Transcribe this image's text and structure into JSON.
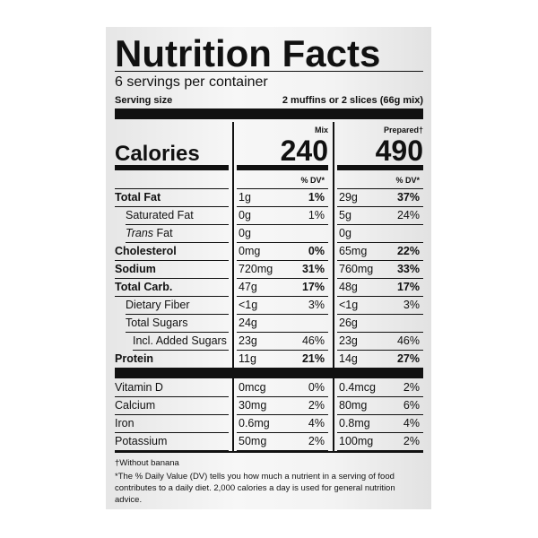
{
  "title": "Nutrition Facts",
  "servings": "6 servings per container",
  "serving_size": {
    "label": "Serving size",
    "value": "2 muffins or 2 slices (66g mix)"
  },
  "calories": {
    "label": "Calories",
    "columns": [
      {
        "header": "Mix",
        "value": "240"
      },
      {
        "header": "Prepared†",
        "value": "490"
      }
    ]
  },
  "dv_header": [
    "% DV*",
    "% DV*"
  ],
  "nutrients": [
    {
      "name": "Total Fat",
      "bold": true,
      "indent": 0,
      "mix": [
        "1g",
        "1%"
      ],
      "prep": [
        "29g",
        "37%"
      ]
    },
    {
      "name": "Saturated Fat",
      "bold": false,
      "indent": 1,
      "mix": [
        "0g",
        "1%"
      ],
      "prep": [
        "5g",
        "24%"
      ]
    },
    {
      "name": "Trans Fat",
      "bold": false,
      "indent": 1,
      "italic_first_word": true,
      "mix": [
        "0g",
        null
      ],
      "prep": [
        "0g",
        null
      ]
    },
    {
      "name": "Cholesterol",
      "bold": true,
      "indent": 0,
      "mix": [
        "0mg",
        "0%"
      ],
      "prep": [
        "65mg",
        "22%"
      ]
    },
    {
      "name": "Sodium",
      "bold": true,
      "indent": 0,
      "mix": [
        "720mg",
        "31%"
      ],
      "prep": [
        "760mg",
        "33%"
      ]
    },
    {
      "name": "Total Carb.",
      "bold": true,
      "indent": 0,
      "mix": [
        "47g",
        "17%"
      ],
      "prep": [
        "48g",
        "17%"
      ]
    },
    {
      "name": "Dietary Fiber",
      "bold": false,
      "indent": 1,
      "mix": [
        "<1g",
        "3%"
      ],
      "prep": [
        "<1g",
        "3%"
      ]
    },
    {
      "name": "Total Sugars",
      "bold": false,
      "indent": 1,
      "mix": [
        "24g",
        null
      ],
      "prep": [
        "26g",
        null
      ]
    },
    {
      "name": "Incl. Added Sugars",
      "bold": false,
      "indent": 2,
      "mix": [
        "23g",
        "46%"
      ],
      "prep": [
        "23g",
        "46%"
      ]
    },
    {
      "name": "Protein",
      "bold": true,
      "indent": 0,
      "mix": [
        "11g",
        "21%"
      ],
      "prep": [
        "14g",
        "27%"
      ]
    }
  ],
  "vitamins": [
    {
      "name": "Vitamin D",
      "mix": [
        "0mcg",
        "0%"
      ],
      "prep": [
        "0.4mcg",
        "2%"
      ]
    },
    {
      "name": "Calcium",
      "mix": [
        "30mg",
        "2%"
      ],
      "prep": [
        "80mg",
        "6%"
      ]
    },
    {
      "name": "Iron",
      "mix": [
        "0.6mg",
        "4%"
      ],
      "prep": [
        "0.8mg",
        "4%"
      ]
    },
    {
      "name": "Potassium",
      "mix": [
        "50mg",
        "2%"
      ],
      "prep": [
        "100mg",
        "2%"
      ]
    }
  ],
  "footnotes": [
    "†Without banana",
    "*The % Daily Value (DV) tells you how much a nutrient in a serving of food contributes to a daily diet. 2,000 calories a day is used for general nutrition advice."
  ]
}
